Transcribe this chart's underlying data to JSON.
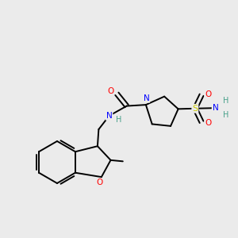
{
  "background_color": "#ebebeb",
  "bond_color": "#000000",
  "atom_colors": {
    "O": "#ff0000",
    "N": "#0000ff",
    "S": "#cccc00",
    "H": "#47a08a",
    "C": "#000000"
  },
  "figsize": [
    3.0,
    3.0
  ],
  "dpi": 100,
  "bond_lw": 1.4,
  "font_size": 7.5
}
